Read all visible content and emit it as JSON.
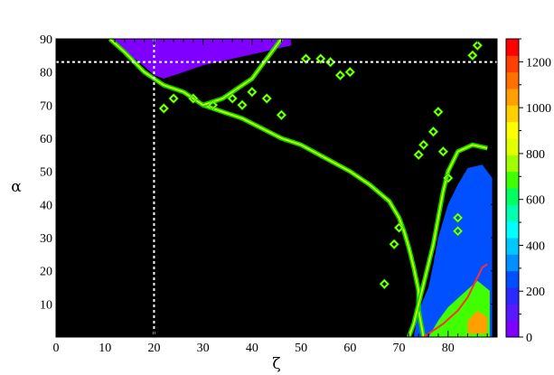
{
  "chart_data": {
    "type": "heatmap",
    "title": "",
    "xlabel": "ζ",
    "ylabel": "α",
    "xlim": [
      0,
      90
    ],
    "ylim": [
      0,
      90
    ],
    "x_ticks": [
      0,
      10,
      20,
      30,
      40,
      50,
      60,
      70,
      80
    ],
    "y_ticks": [
      10,
      20,
      30,
      40,
      50,
      60,
      70,
      80,
      90
    ],
    "grid": false,
    "background_value": 0,
    "reference_lines": {
      "vertical_x": 20,
      "horizontal_y": 83
    },
    "colorbar": {
      "range": [
        0,
        1300
      ],
      "ticks": [
        0,
        200,
        400,
        600,
        800,
        1000,
        1200
      ],
      "colors": [
        "#7f00ff",
        "#5a18ff",
        "#2a2aff",
        "#0050ff",
        "#0090ff",
        "#00c8ff",
        "#00ffff",
        "#00ffb0",
        "#00ff60",
        "#40ff00",
        "#a0ff00",
        "#e0ff00",
        "#ffff00",
        "#ffd000",
        "#ffa000",
        "#ff7000",
        "#ff4000",
        "#ff0000"
      ]
    },
    "regions": [
      {
        "name": "upper-left blue wedge",
        "level": 60,
        "polygon": [
          [
            12,
            90
          ],
          [
            48,
            90
          ],
          [
            48,
            88
          ],
          [
            42,
            86
          ],
          [
            36,
            84
          ],
          [
            30,
            82
          ],
          [
            26,
            80
          ],
          [
            22,
            78
          ],
          [
            20,
            79
          ],
          [
            17,
            83
          ],
          [
            14,
            86
          ],
          [
            12,
            88
          ]
        ]
      },
      {
        "name": "lower-right high region",
        "level": 250,
        "polygon": [
          [
            73,
            0
          ],
          [
            89,
            0
          ],
          [
            89,
            48
          ],
          [
            87,
            52
          ],
          [
            84,
            51
          ],
          [
            82,
            46
          ],
          [
            80,
            40
          ],
          [
            78,
            30
          ],
          [
            77,
            22
          ],
          [
            76,
            15
          ],
          [
            74,
            8
          ]
        ]
      },
      {
        "name": "lower-right core",
        "level": 650,
        "polygon": [
          [
            76,
            0
          ],
          [
            88.5,
            0
          ],
          [
            88.5,
            14
          ],
          [
            86,
            17
          ],
          [
            83,
            13
          ],
          [
            80,
            9
          ],
          [
            78,
            5
          ]
        ]
      },
      {
        "name": "lower-right peak",
        "level": 1050,
        "polygon": [
          [
            84,
            1
          ],
          [
            88,
            1
          ],
          [
            88,
            6
          ],
          [
            86,
            8
          ],
          [
            84,
            5
          ]
        ]
      }
    ],
    "contours": [
      {
        "name": "main diagonal boundary",
        "points": [
          [
            11,
            90
          ],
          [
            14,
            86
          ],
          [
            18,
            80
          ],
          [
            22,
            76
          ],
          [
            26,
            74
          ],
          [
            30,
            70
          ],
          [
            34,
            68
          ],
          [
            38,
            66
          ],
          [
            42,
            63
          ],
          [
            46,
            60
          ],
          [
            50,
            58
          ],
          [
            55,
            54
          ],
          [
            60,
            50
          ],
          [
            64,
            46
          ],
          [
            68,
            41
          ],
          [
            70,
            36
          ],
          [
            71,
            32
          ],
          [
            72,
            27
          ],
          [
            73,
            21
          ],
          [
            74,
            14
          ],
          [
            74,
            8
          ],
          [
            75,
            0
          ]
        ]
      },
      {
        "name": "upper middle boundary",
        "points": [
          [
            46,
            90
          ],
          [
            44,
            86
          ],
          [
            42,
            82
          ],
          [
            40,
            78
          ],
          [
            37,
            75
          ],
          [
            34,
            72
          ],
          [
            30,
            70
          ]
        ]
      },
      {
        "name": "right branch boundary",
        "points": [
          [
            88,
            57
          ],
          [
            85,
            58
          ],
          [
            82,
            56
          ],
          [
            80,
            50
          ],
          [
            79,
            44
          ],
          [
            78,
            36
          ],
          [
            77,
            28
          ],
          [
            76,
            22
          ],
          [
            75,
            16
          ],
          [
            74,
            10
          ],
          [
            73,
            4
          ],
          [
            72,
            0
          ]
        ]
      },
      {
        "name": "red core boundary",
        "points": [
          [
            75,
            0
          ],
          [
            79,
            4
          ],
          [
            82,
            8
          ],
          [
            84,
            12
          ],
          [
            86,
            18
          ],
          [
            87,
            21
          ],
          [
            88,
            22
          ]
        ]
      }
    ],
    "islands": [
      [
        22,
        69
      ],
      [
        24,
        72
      ],
      [
        28,
        72
      ],
      [
        32,
        70
      ],
      [
        36,
        72
      ],
      [
        38,
        70
      ],
      [
        40,
        74
      ],
      [
        43,
        72
      ],
      [
        46,
        67
      ],
      [
        51,
        84
      ],
      [
        54,
        84
      ],
      [
        56,
        83
      ],
      [
        58,
        79
      ],
      [
        60,
        80
      ],
      [
        67,
        16
      ],
      [
        69,
        28
      ],
      [
        70,
        33
      ],
      [
        74,
        55
      ],
      [
        75,
        58
      ],
      [
        77,
        62
      ],
      [
        78,
        68
      ],
      [
        79,
        56
      ],
      [
        80,
        48
      ],
      [
        82,
        32
      ],
      [
        82,
        36
      ],
      [
        86,
        88
      ],
      [
        85,
        85
      ]
    ]
  }
}
